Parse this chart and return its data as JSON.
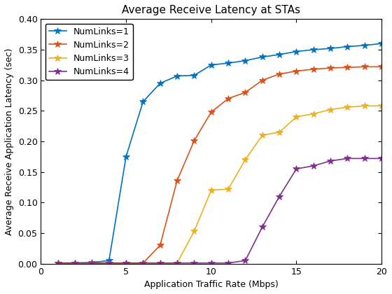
{
  "title": "Average Receive Latency at STAs",
  "xlabel": "Application Traffic Rate (Mbps)",
  "ylabel": "Average Receive Application Latency (sec)",
  "xlim": [
    0,
    20
  ],
  "ylim": [
    0,
    0.4
  ],
  "legend_labels": [
    "NumLinks=1",
    "NumLinks=2",
    "NumLinks=3",
    "NumLinks=4"
  ],
  "colors": [
    "#0072BD",
    "#D95319",
    "#EDB120",
    "#7E2F8E"
  ],
  "series": [
    {
      "x": [
        1,
        2,
        3,
        4,
        5,
        6,
        7,
        8,
        9,
        10,
        11,
        12,
        13,
        14,
        15,
        16,
        17,
        18,
        19,
        20
      ],
      "y": [
        0.001,
        0.001,
        0.002,
        0.005,
        0.175,
        0.265,
        0.295,
        0.307,
        0.308,
        0.325,
        0.328,
        0.332,
        0.338,
        0.342,
        0.347,
        0.35,
        0.352,
        0.355,
        0.357,
        0.36
      ]
    },
    {
      "x": [
        1,
        2,
        3,
        4,
        5,
        6,
        7,
        8,
        9,
        10,
        11,
        12,
        13,
        14,
        15,
        16,
        17,
        18,
        19,
        20
      ],
      "y": [
        0.001,
        0.001,
        0.001,
        0.001,
        0.001,
        0.001,
        0.03,
        0.136,
        0.201,
        0.248,
        0.27,
        0.28,
        0.3,
        0.31,
        0.315,
        0.318,
        0.32,
        0.321,
        0.322,
        0.322
      ]
    },
    {
      "x": [
        1,
        2,
        3,
        4,
        5,
        6,
        7,
        8,
        9,
        10,
        11,
        12,
        13,
        14,
        15,
        16,
        17,
        18,
        19,
        20
      ],
      "y": [
        0.001,
        0.001,
        0.001,
        0.001,
        0.001,
        0.001,
        0.001,
        0.001,
        0.053,
        0.12,
        0.122,
        0.17,
        0.21,
        0.215,
        0.24,
        0.245,
        0.252,
        0.256,
        0.258,
        0.258
      ]
    },
    {
      "x": [
        1,
        2,
        3,
        4,
        5,
        6,
        7,
        8,
        9,
        10,
        11,
        12,
        13,
        14,
        15,
        16,
        17,
        18,
        19,
        20
      ],
      "y": [
        0.001,
        0.001,
        0.001,
        0.001,
        0.001,
        0.001,
        0.001,
        0.001,
        0.001,
        0.001,
        0.001,
        0.005,
        0.06,
        0.11,
        0.155,
        0.16,
        0.168,
        0.172,
        0.172,
        0.172
      ]
    }
  ],
  "xticks": [
    0,
    5,
    10,
    15,
    20
  ],
  "yticks": [
    0,
    0.05,
    0.1,
    0.15,
    0.2,
    0.25,
    0.3,
    0.35,
    0.4
  ],
  "background_color": "#FFFFFF",
  "grid": false,
  "marker": "*",
  "markersize": 7,
  "linewidth": 1.2,
  "title_fontsize": 11,
  "label_fontsize": 9,
  "tick_fontsize": 9,
  "legend_fontsize": 9,
  "title_fontweight": "normal"
}
